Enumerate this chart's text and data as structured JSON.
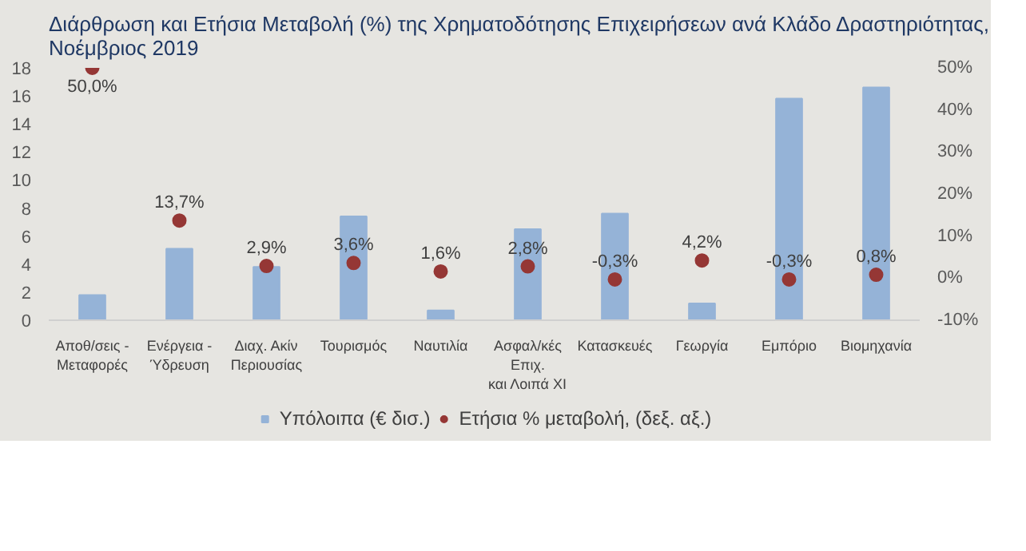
{
  "chart_data": {
    "type": "bar",
    "title": "Διάρθρωση και Ετήσια Μεταβολή (%) της Χρηματοδότησης Επιχειρήσεων ανά Κλάδο Δραστηριότητας, Νοέμβριος 2019",
    "categories": [
      "Αποθ/σεις -\nΜεταφορές",
      "Ενέργεια -\nΎδρευση",
      "Διαχ. Ακίν\nΠεριουσίας",
      "Τουρισμός",
      "Ναυτιλία",
      "Ασφαλ/κές\nΕπιχ.\nκαι Λοιπά ΧΙ",
      "Κατασκευές",
      "Γεωργία",
      "Εμπόριο",
      "Βιομηχανία"
    ],
    "series": [
      {
        "name": "Υπόλοιπα (€ δισ.)",
        "color": "#95b3d7",
        "values": [
          1.8,
          5.1,
          3.8,
          7.4,
          0.7,
          6.5,
          7.6,
          1.2,
          15.8,
          16.6
        ]
      },
      {
        "name": "Ετήσια % μεταβολή, (δεξ. αξ.)",
        "type": "scatter",
        "axis": "y2",
        "color": "#953735",
        "values": [
          50.0,
          13.7,
          2.9,
          3.6,
          1.6,
          2.8,
          -0.3,
          4.2,
          -0.3,
          0.8
        ],
        "value_labels": [
          "50,0%",
          "13,7%",
          "2,9%",
          "3,6%",
          "1,6%",
          "2,8%",
          "-0,3%",
          "4,2%",
          "-0,3%",
          "0,8%"
        ]
      }
    ],
    "ylim": [
      0,
      18
    ],
    "yticks": [
      0,
      2,
      4,
      6,
      8,
      10,
      12,
      14,
      16,
      18
    ],
    "y2lim": [
      -10,
      50
    ],
    "y2ticks": [
      {
        "value": -10,
        "label": "-10%"
      },
      {
        "value": 0,
        "label": "0%"
      },
      {
        "value": 10,
        "label": "10%"
      },
      {
        "value": 20,
        "label": "20%"
      },
      {
        "value": 30,
        "label": "30%"
      },
      {
        "value": 40,
        "label": "40%"
      },
      {
        "value": 50,
        "label": "50%"
      }
    ],
    "legend": "bottom",
    "marker": "circle"
  }
}
